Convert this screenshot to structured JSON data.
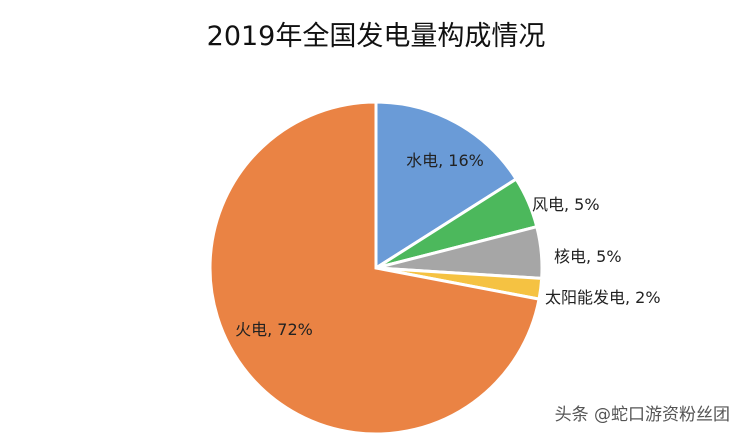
{
  "chart_data": {
    "type": "pie",
    "title": "2019年全国发电量构成情况",
    "slices": [
      {
        "name": "水电",
        "value": 16,
        "label": "水电, 16%",
        "color": "#6a9bd7"
      },
      {
        "name": "风电",
        "value": 5,
        "label": "风电, 5%",
        "color": "#4cb85c"
      },
      {
        "name": "核电",
        "value": 5,
        "label": "核电, 5%",
        "color": "#a6a6a6"
      },
      {
        "name": "太阳能发电",
        "value": 2,
        "label": "太阳能发电, 2%",
        "color": "#f5c242"
      },
      {
        "name": "火电",
        "value": 72,
        "label": "火电, 72%",
        "color": "#ea8344"
      }
    ]
  },
  "watermark": "头条 @蛇口游资粉丝团"
}
